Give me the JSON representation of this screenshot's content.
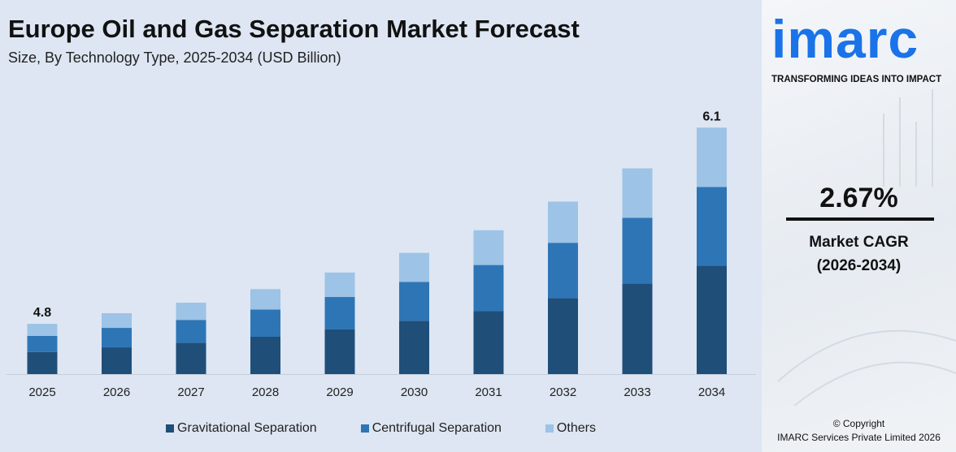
{
  "title": "Europe Oil and Gas Separation Market Forecast",
  "subtitle": "Size, By Technology Type, 2025-2034 (USD Billion)",
  "brand": {
    "logo_text": "imarc",
    "tagline": "TRANSFORMING IDEAS INTO IMPACT",
    "color": "#1a73e8"
  },
  "cagr": {
    "value": "2.67%",
    "label": "Market CAGR",
    "period": "(2026-2034)"
  },
  "copyright": {
    "line1": "© Copyright",
    "line2": "IMARC Services Private Limited 2026"
  },
  "chart_data": {
    "type": "bar",
    "stacked": true,
    "categories": [
      "2025",
      "2026",
      "2027",
      "2028",
      "2029",
      "2030",
      "2031",
      "2032",
      "2033",
      "2034"
    ],
    "totals": [
      4.8,
      4.87,
      4.94,
      5.03,
      5.14,
      5.27,
      5.42,
      5.61,
      5.83,
      6.1
    ],
    "data_labels": {
      "0": "4.8",
      "9": "6.1"
    },
    "series": [
      {
        "name": "Gravitational Separation",
        "color": "#1f4e79",
        "values": [
          2.11,
          2.14,
          2.17,
          2.21,
          2.26,
          2.32,
          2.38,
          2.47,
          2.57,
          2.68
        ]
      },
      {
        "name": "Centrifugal Separation",
        "color": "#2e75b6",
        "values": [
          1.54,
          1.56,
          1.58,
          1.61,
          1.64,
          1.69,
          1.73,
          1.8,
          1.86,
          1.95
        ]
      },
      {
        "name": "Others",
        "color": "#9dc3e6",
        "values": [
          1.15,
          1.17,
          1.19,
          1.21,
          1.24,
          1.26,
          1.31,
          1.34,
          1.4,
          1.47
        ]
      }
    ],
    "legend": "bottom",
    "grid": false,
    "xlabel": "",
    "ylabel": ""
  }
}
